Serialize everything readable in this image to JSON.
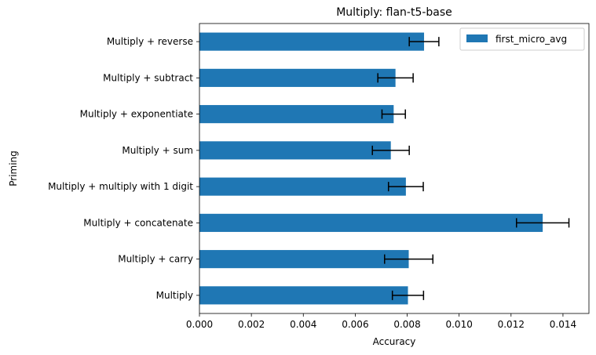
{
  "chart_data": {
    "type": "bar",
    "orientation": "horizontal",
    "title": "Multiply: flan-t5-base",
    "xlabel": "Accuracy",
    "ylabel": "Priming",
    "xlim": [
      0,
      0.015
    ],
    "xticks": [
      "0.000",
      "0.002",
      "0.004",
      "0.006",
      "0.008",
      "0.010",
      "0.012",
      "0.014"
    ],
    "grid": false,
    "legend_position": "top-right",
    "bar_color": "#1f77b4",
    "categories": [
      "Multiply",
      "Multiply + carry",
      "Multiply + concatenate",
      "Multiply + multiply with 1 digit",
      "Multiply + sum",
      "Multiply + exponentiate",
      "Multiply + subtract",
      "Multiply + reverse"
    ],
    "series": [
      {
        "name": "first_micro_avg",
        "values": [
          0.00803,
          0.00806,
          0.01322,
          0.00795,
          0.00737,
          0.00748,
          0.00755,
          0.00865
        ],
        "errors": [
          0.0006,
          0.00093,
          0.00101,
          0.00067,
          0.00071,
          0.00045,
          0.00068,
          0.00057
        ]
      }
    ]
  }
}
